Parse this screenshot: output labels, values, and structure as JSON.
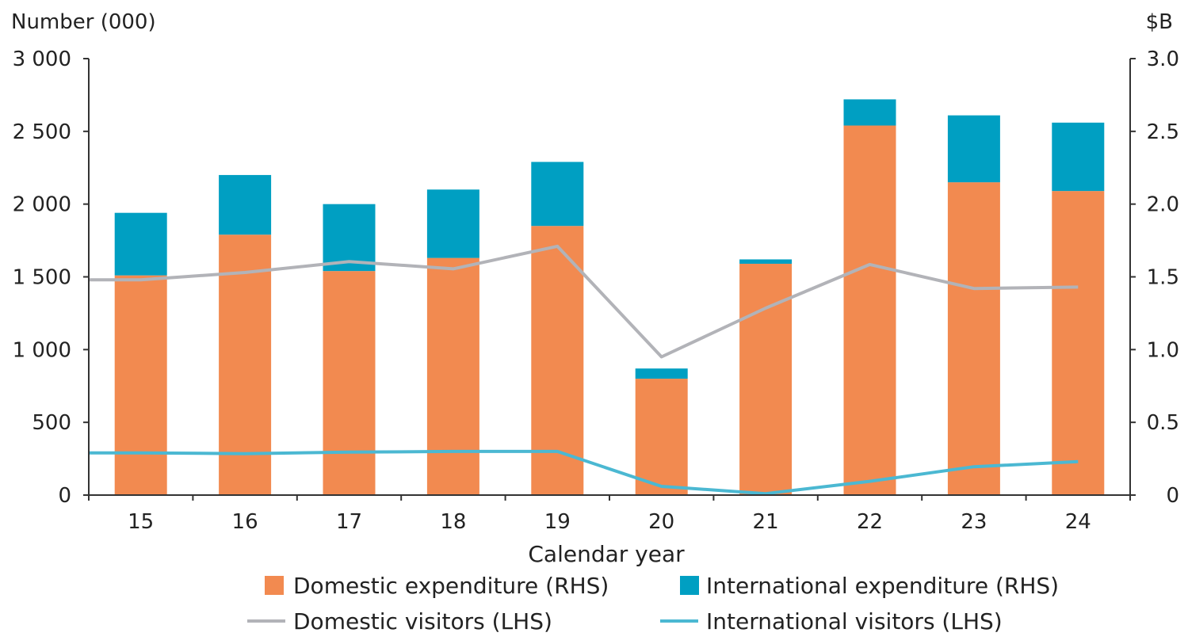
{
  "chart_data": {
    "type": "bar",
    "categories": [
      "15",
      "16",
      "17",
      "18",
      "19",
      "20",
      "21",
      "22",
      "23",
      "24"
    ],
    "xlabel": "Calendar year",
    "left_axis": {
      "unit_label": "Number (000)",
      "range": [
        0,
        3000
      ],
      "ticks": [
        {
          "value": 0,
          "label": "0"
        },
        {
          "value": 500,
          "label": "500"
        },
        {
          "value": 1000,
          "label": "1 000"
        },
        {
          "value": 1500,
          "label": "1 500"
        },
        {
          "value": 2000,
          "label": "2 000"
        },
        {
          "value": 2500,
          "label": "2 500"
        },
        {
          "value": 3000,
          "label": "3 000"
        }
      ]
    },
    "right_axis": {
      "unit_label": "$B",
      "range": [
        0,
        3.0
      ],
      "ticks": [
        {
          "value": 0,
          "label": "0"
        },
        {
          "value": 0.5,
          "label": "0.5"
        },
        {
          "value": 1.0,
          "label": "1.0"
        },
        {
          "value": 1.5,
          "label": "1.5"
        },
        {
          "value": 2.0,
          "label": "2.0"
        },
        {
          "value": 2.5,
          "label": "2.5"
        },
        {
          "value": 3.0,
          "label": "3.0"
        }
      ]
    },
    "grid": false,
    "legend_position": "bottom",
    "bar_series": [
      {
        "name": "Domestic expenditure (RHS)",
        "axis": "right",
        "color": "#F28A50",
        "values": [
          1.51,
          1.79,
          1.54,
          1.63,
          1.85,
          0.8,
          1.59,
          2.54,
          2.15,
          2.09
        ]
      },
      {
        "name": "International expenditure (RHS)",
        "axis": "right",
        "color": "#009FC2",
        "values": [
          0.43,
          0.41,
          0.46,
          0.47,
          0.44,
          0.07,
          0.03,
          0.18,
          0.46,
          0.47
        ]
      }
    ],
    "line_series": [
      {
        "name": "Domestic visitors (LHS)",
        "axis": "left",
        "color": "#B2B3B8",
        "values": [
          1480,
          1530,
          1605,
          1555,
          1710,
          950,
          1285,
          1585,
          1420,
          1430
        ]
      },
      {
        "name": "International visitors (LHS)",
        "axis": "left",
        "color": "#4BB8D2",
        "values": [
          290,
          285,
          295,
          300,
          300,
          60,
          10,
          95,
          195,
          230
        ]
      }
    ]
  }
}
